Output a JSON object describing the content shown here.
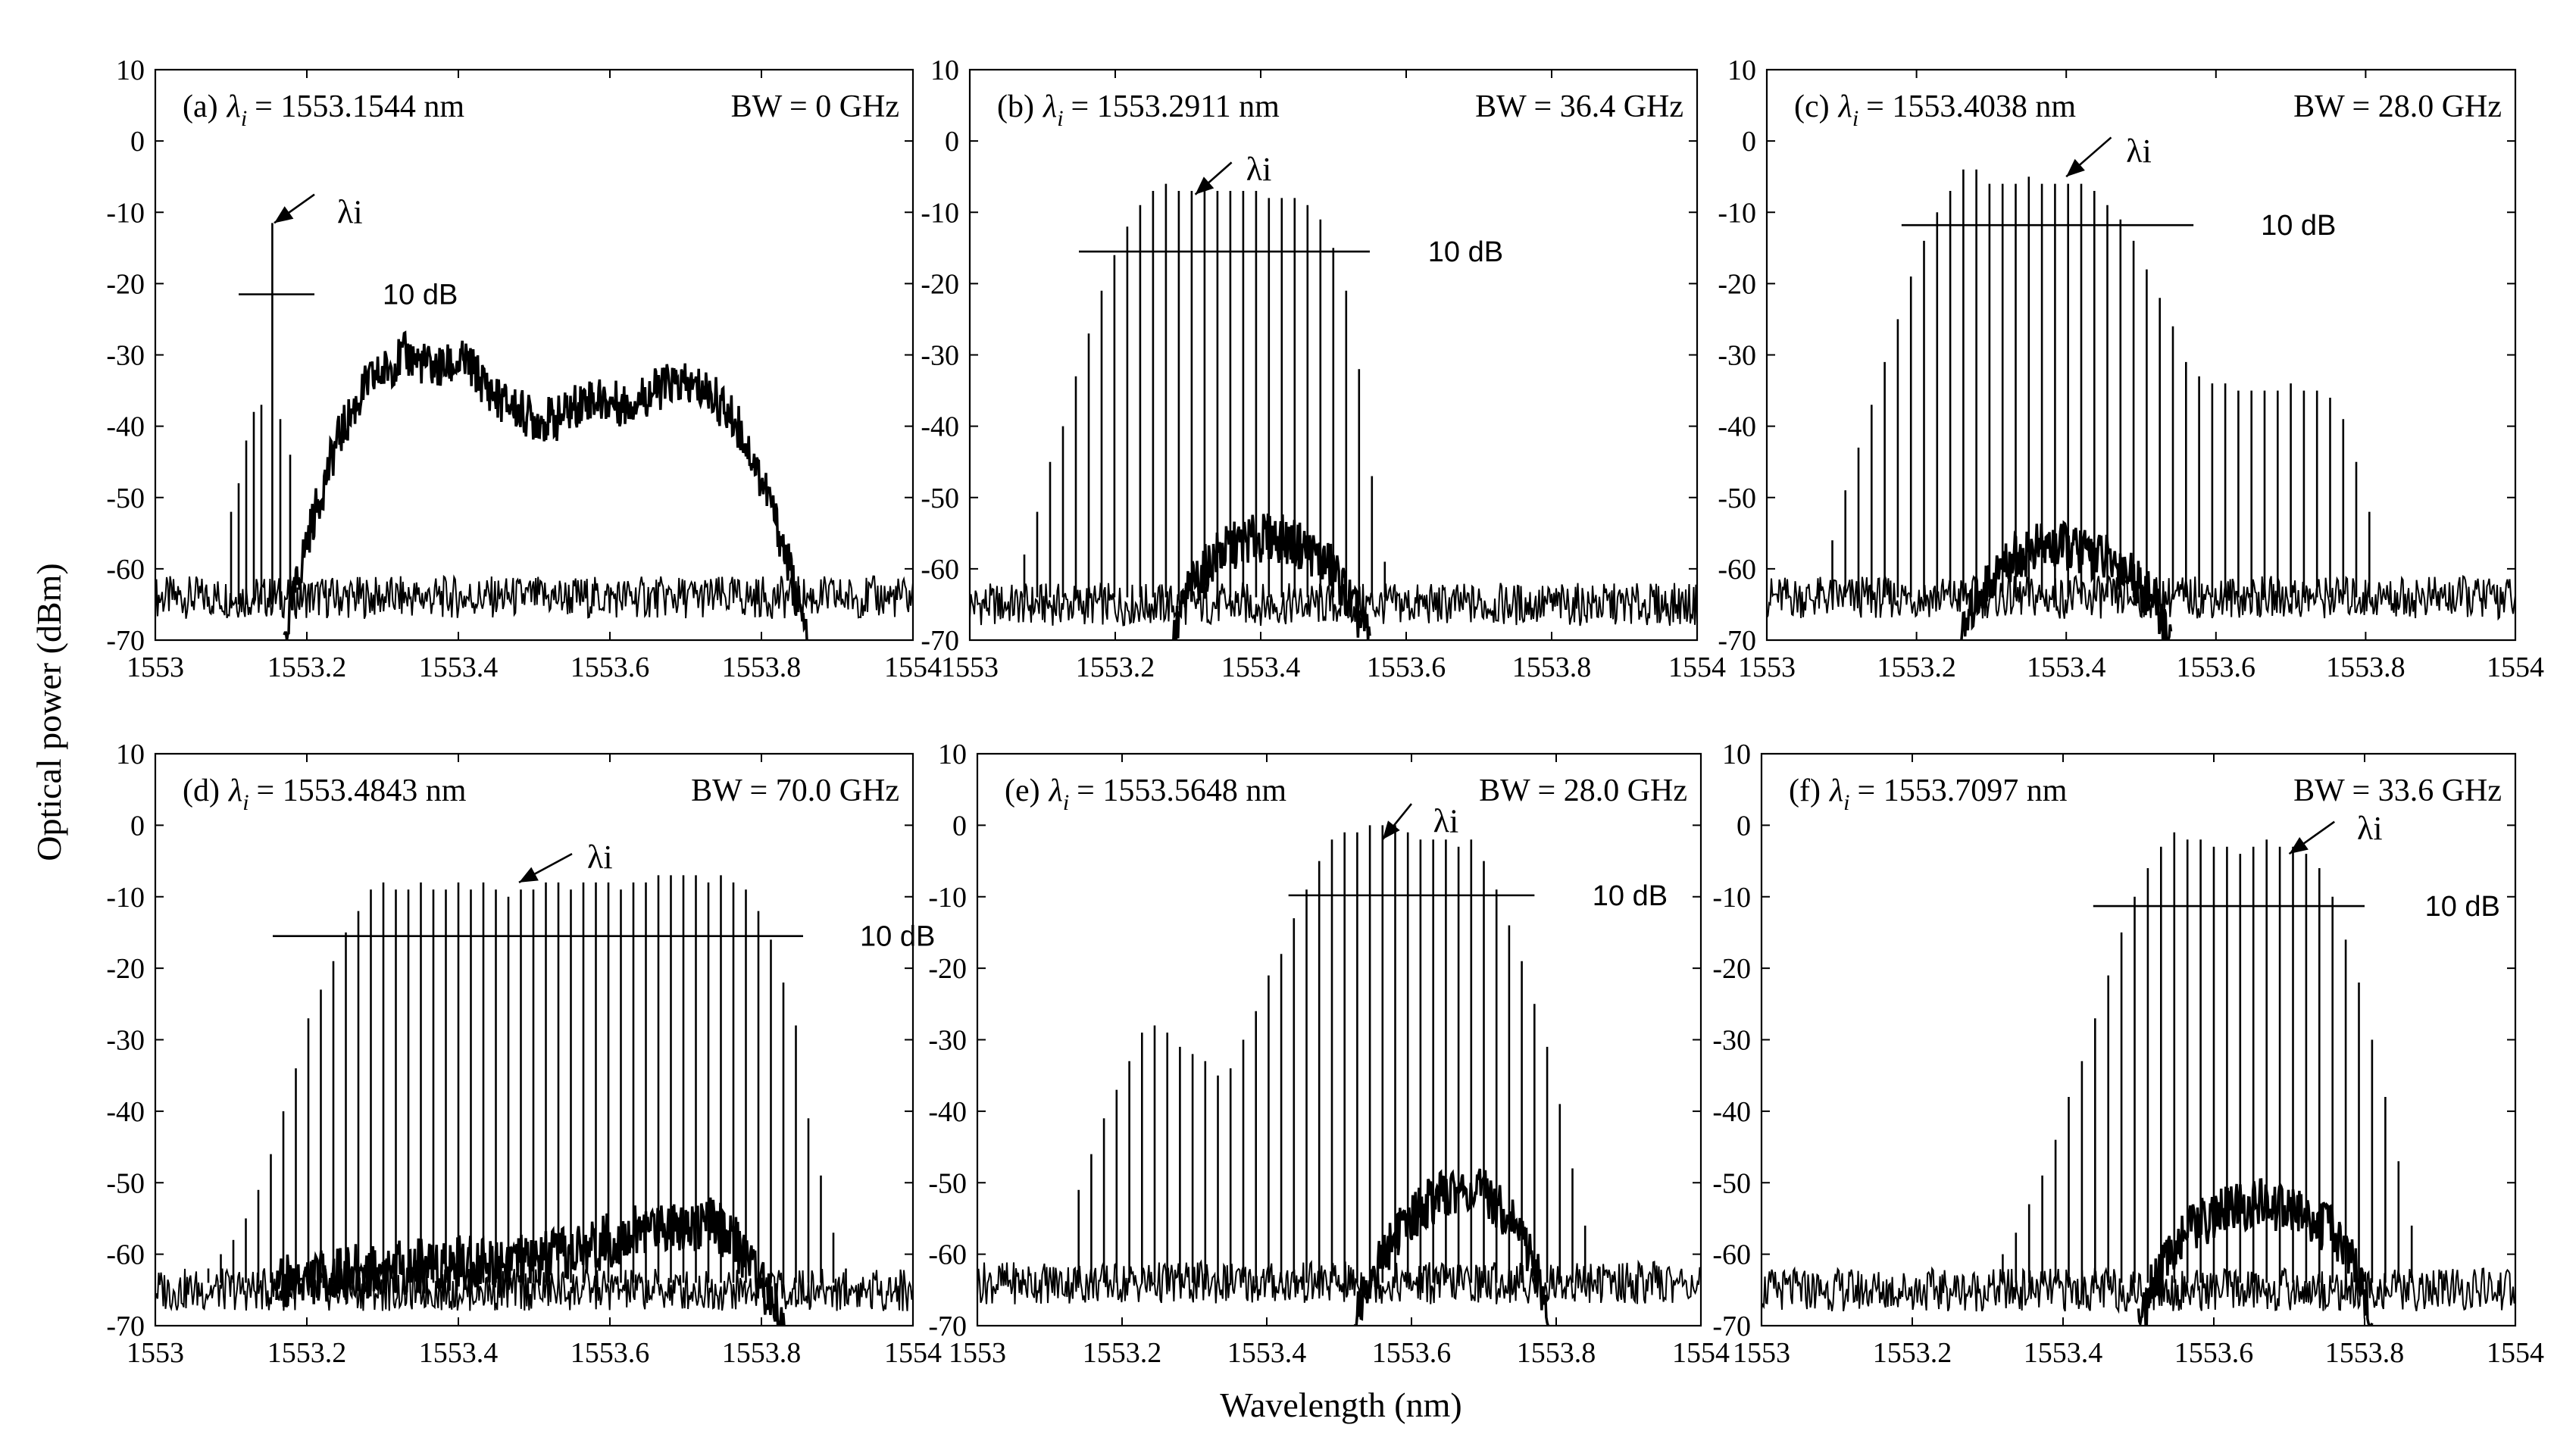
{
  "figure": {
    "y_axis_title": "Optical power (dBm)",
    "x_axis_title": "Wavelength (nm)"
  },
  "chart_data": [
    {
      "type": "line",
      "panel": "(a)",
      "lambda_text": "= 1553.1544 nm",
      "lambda_i_nm": 1553.1544,
      "bw_text": "BW = 0 GHz",
      "bw_ghz": 0,
      "db_label": "10 dB",
      "arrow_label": "λi",
      "xlim": [
        1553,
        1554
      ],
      "ylim": [
        -70,
        10
      ],
      "xticks": [
        "1553",
        "1553.2",
        "1553.4",
        "1553.6",
        "1553.8",
        "1554"
      ],
      "yticks": [
        "10",
        "0",
        "-10",
        "-20",
        "-30",
        "-40",
        "-50",
        "-60",
        "-70"
      ],
      "level_line": {
        "x1": 1553.11,
        "x2": 1553.21,
        "y": -21.5
      },
      "arrow": {
        "from": [
          1553.21,
          -7.5
        ],
        "to": [
          1553.157,
          -11.5
        ],
        "label_at": [
          1553.24,
          -10
        ]
      },
      "db_label_at": [
        1553.3,
        -21.5
      ],
      "comb": {
        "x": [
          1553.1,
          1553.11,
          1553.12,
          1553.13,
          1553.14,
          1553.1544,
          1553.165,
          1553.178
        ],
        "y": [
          -52,
          -48,
          -42,
          -38,
          -37,
          -11.5,
          -39,
          -44
        ],
        "floor": -65
      },
      "ase": {
        "points": [
          [
            1553.17,
            -70
          ],
          [
            1553.2,
            -56
          ],
          [
            1553.24,
            -42
          ],
          [
            1553.28,
            -34
          ],
          [
            1553.33,
            -30
          ],
          [
            1553.37,
            -32
          ],
          [
            1553.41,
            -31
          ],
          [
            1553.45,
            -36
          ],
          [
            1553.5,
            -39
          ],
          [
            1553.53,
            -39
          ],
          [
            1553.57,
            -36
          ],
          [
            1553.62,
            -37
          ],
          [
            1553.68,
            -34
          ],
          [
            1553.73,
            -35
          ],
          [
            1553.77,
            -40
          ],
          [
            1553.81,
            -50
          ],
          [
            1553.84,
            -61
          ],
          [
            1553.86,
            -70
          ]
        ],
        "amp": 3.2
      },
      "noise": {
        "base": -64,
        "amp": 3
      }
    },
    {
      "type": "line",
      "panel": "(b)",
      "lambda_text": "= 1553.2911 nm",
      "lambda_i_nm": 1553.2911,
      "bw_text": "BW = 36.4 GHz",
      "bw_ghz": 36.4,
      "db_label": "10 dB",
      "arrow_label": "λi",
      "xlim": [
        1553,
        1554
      ],
      "ylim": [
        -70,
        10
      ],
      "xticks": [
        "1553",
        "1553.2",
        "1553.4",
        "1553.6",
        "1553.8",
        "1554"
      ],
      "yticks": [
        "10",
        "0",
        "-10",
        "-20",
        "-30",
        "-40",
        "-50",
        "-60",
        "-70"
      ],
      "level_line": {
        "x1": 1553.15,
        "x2": 1553.55,
        "y": -15.5
      },
      "arrow": {
        "from": [
          1553.36,
          -3
        ],
        "to": [
          1553.31,
          -7.5
        ],
        "label_at": [
          1553.38,
          -4
        ]
      },
      "db_label_at": [
        1553.63,
        -15.5
      ],
      "comb": {
        "x": [
          1553.075,
          1553.0927,
          1553.1104,
          1553.1281,
          1553.1458,
          1553.1635,
          1553.1812,
          1553.1989,
          1553.2166,
          1553.2343,
          1553.252,
          1553.2697,
          1553.2874,
          1553.3051,
          1553.3228,
          1553.3405,
          1553.3582,
          1553.3759,
          1553.3936,
          1553.4113,
          1553.429,
          1553.4467,
          1553.4644,
          1553.4821,
          1553.4998,
          1553.5175,
          1553.5352,
          1553.5529,
          1553.5706
        ],
        "y": [
          -58,
          -52,
          -45,
          -40,
          -33,
          -27,
          -21,
          -16,
          -12,
          -9,
          -7,
          -6,
          -7,
          -7,
          -7,
          -7,
          -7,
          -7,
          -7,
          -8,
          -8,
          -8,
          -9,
          -11,
          -15,
          -21,
          -32,
          -47,
          -59
        ],
        "floor": -64
      },
      "ase": {
        "points": [
          [
            1553.28,
            -70
          ],
          [
            1553.3,
            -63
          ],
          [
            1553.34,
            -58
          ],
          [
            1553.38,
            -56
          ],
          [
            1553.42,
            -55.5
          ],
          [
            1553.46,
            -57
          ],
          [
            1553.5,
            -60
          ],
          [
            1553.53,
            -66
          ],
          [
            1553.55,
            -70
          ]
        ],
        "amp": 3.5
      },
      "noise": {
        "base": -65,
        "amp": 3
      }
    },
    {
      "type": "line",
      "panel": "(c)",
      "lambda_text": "= 1553.4038 nm",
      "lambda_i_nm": 1553.4038,
      "bw_text": "BW = 28.0 GHz",
      "bw_ghz": 28.0,
      "db_label": "10 dB",
      "arrow_label": "λi",
      "xlim": [
        1553,
        1554
      ],
      "ylim": [
        -70,
        10
      ],
      "xticks": [
        "1553",
        "1553.2",
        "1553.4",
        "1553.6",
        "1553.8",
        "1554"
      ],
      "yticks": [
        "10",
        "0",
        "-10",
        "-20",
        "-30",
        "-40",
        "-50",
        "-60",
        "-70"
      ],
      "level_line": {
        "x1": 1553.18,
        "x2": 1553.57,
        "y": -11.8
      },
      "arrow": {
        "from": [
          1553.46,
          0.5
        ],
        "to": [
          1553.4,
          -5
        ],
        "label_at": [
          1553.48,
          -1.5
        ]
      },
      "db_label_at": [
        1553.66,
        -11.8
      ],
      "comb": {
        "x": [
          1553.07,
          1553.0875,
          1553.105,
          1553.1225,
          1553.14,
          1553.1575,
          1553.175,
          1553.1925,
          1553.21,
          1553.2275,
          1553.245,
          1553.2625,
          1553.28,
          1553.2975,
          1553.315,
          1553.3325,
          1553.35,
          1553.3675,
          1553.385,
          1553.4025,
          1553.42,
          1553.4375,
          1553.455,
          1553.4725,
          1553.49,
          1553.5075,
          1553.525,
          1553.5425,
          1553.56,
          1553.5775,
          1553.595,
          1553.6125,
          1553.63,
          1553.6475,
          1553.665,
          1553.6825,
          1553.7,
          1553.7175,
          1553.735,
          1553.7525,
          1553.77,
          1553.7875,
          1553.805
        ],
        "y": [
          -62,
          -56,
          -49,
          -43,
          -37,
          -31,
          -25,
          -19,
          -14,
          -10,
          -7,
          -4,
          -4,
          -6,
          -6,
          -6,
          -5,
          -6,
          -6,
          -6,
          -6,
          -7,
          -9,
          -11,
          -14,
          -18,
          -22,
          -26,
          -31,
          -33,
          -34,
          -34,
          -35,
          -35,
          -35,
          -35,
          -34,
          -35,
          -35,
          -36,
          -39,
          -45,
          -52
        ],
        "floor": -64
      },
      "ase": {
        "points": [
          [
            1553.26,
            -70
          ],
          [
            1553.28,
            -64
          ],
          [
            1553.32,
            -59
          ],
          [
            1553.36,
            -57
          ],
          [
            1553.4,
            -57
          ],
          [
            1553.44,
            -58
          ],
          [
            1553.48,
            -60
          ],
          [
            1553.52,
            -65
          ],
          [
            1553.54,
            -70
          ]
        ],
        "amp": 3.5
      },
      "noise": {
        "base": -64,
        "amp": 3
      }
    },
    {
      "type": "line",
      "panel": "(d)",
      "lambda_text": "= 1553.4843 nm",
      "lambda_i_nm": 1553.4843,
      "bw_text": "BW = 70.0 GHz",
      "bw_ghz": 70.0,
      "db_label": "10 dB",
      "arrow_label": "λi",
      "xlim": [
        1553,
        1554
      ],
      "ylim": [
        -70,
        10
      ],
      "xticks": [
        "1553",
        "1553.2",
        "1553.4",
        "1553.6",
        "1553.8",
        "1554"
      ],
      "yticks": [
        "10",
        "0",
        "-10",
        "-20",
        "-30",
        "-40",
        "-50",
        "-60",
        "-70"
      ],
      "level_line": {
        "x1": 1553.155,
        "x2": 1553.855,
        "y": -15.5
      },
      "arrow": {
        "from": [
          1553.55,
          -4
        ],
        "to": [
          1553.48,
          -8
        ],
        "label_at": [
          1553.57,
          -4.5
        ]
      },
      "db_label_at": [
        1553.93,
        -15.5
      ],
      "comb": {
        "x": [
          1553.07,
          1553.0865,
          1553.103,
          1553.1195,
          1553.136,
          1553.1525,
          1553.169,
          1553.1855,
          1553.202,
          1553.2185,
          1553.235,
          1553.2515,
          1553.268,
          1553.2845,
          1553.301,
          1553.3175,
          1553.334,
          1553.3505,
          1553.367,
          1553.3835,
          1553.4,
          1553.4165,
          1553.433,
          1553.4495,
          1553.466,
          1553.4825,
          1553.499,
          1553.5155,
          1553.532,
          1553.5485,
          1553.565,
          1553.5815,
          1553.598,
          1553.6145,
          1553.631,
          1553.6475,
          1553.664,
          1553.6805,
          1553.697,
          1553.7135,
          1553.73,
          1553.7465,
          1553.763,
          1553.7795,
          1553.796,
          1553.8125,
          1553.829,
          1553.8455,
          1553.862,
          1553.8785,
          1553.895,
          1553.9115
        ],
        "y": [
          -62,
          -60,
          -58,
          -55,
          -51,
          -46,
          -40,
          -34,
          -27,
          -23,
          -19,
          -15,
          -12,
          -9,
          -8,
          -9,
          -9,
          -8,
          -9,
          -9,
          -8,
          -9,
          -8,
          -9,
          -10,
          -9,
          -9,
          -8,
          -8,
          -9,
          -8,
          -8,
          -8,
          -9,
          -8,
          -8,
          -7,
          -7,
          -7,
          -7,
          -8,
          -7,
          -8,
          -9,
          -12,
          -16,
          -22,
          -28,
          -41,
          -49,
          -57,
          -62
        ],
        "floor": -64
      },
      "ase": {
        "points": [
          [
            1553.16,
            -64
          ],
          [
            1553.3,
            -62
          ],
          [
            1553.42,
            -61
          ],
          [
            1553.5,
            -61
          ],
          [
            1553.55,
            -60
          ],
          [
            1553.6,
            -58
          ],
          [
            1553.66,
            -56
          ],
          [
            1553.7,
            -55.5
          ],
          [
            1553.74,
            -56
          ],
          [
            1553.78,
            -60
          ],
          [
            1553.81,
            -66
          ],
          [
            1553.83,
            -70
          ]
        ],
        "amp": 4
      },
      "noise": {
        "base": -65,
        "amp": 3
      }
    },
    {
      "type": "line",
      "panel": "(e)",
      "lambda_text": "= 1553.5648 nm",
      "lambda_i_nm": 1553.5648,
      "bw_text": "BW = 28.0 GHz",
      "bw_ghz": 28.0,
      "db_label": "10 dB",
      "arrow_label": "λi",
      "xlim": [
        1553,
        1554
      ],
      "ylim": [
        -70,
        10
      ],
      "xticks": [
        "1553",
        "1553.2",
        "1553.4",
        "1553.6",
        "1553.8",
        "1554"
      ],
      "yticks": [
        "10",
        "0",
        "-10",
        "-20",
        "-30",
        "-40",
        "-50",
        "-60",
        "-70"
      ],
      "level_line": {
        "x1": 1553.43,
        "x2": 1553.77,
        "y": -9.8
      },
      "arrow": {
        "from": [
          1553.6,
          3
        ],
        "to": [
          1553.56,
          -2
        ],
        "label_at": [
          1553.63,
          0.5
        ]
      },
      "db_label_at": [
        1553.85,
        -9.8
      ],
      "comb": {
        "x": [
          1553.14,
          1553.1575,
          1553.175,
          1553.1925,
          1553.21,
          1553.2275,
          1553.245,
          1553.2625,
          1553.28,
          1553.2975,
          1553.315,
          1553.3325,
          1553.35,
          1553.3675,
          1553.385,
          1553.4025,
          1553.42,
          1553.4375,
          1553.455,
          1553.4725,
          1553.49,
          1553.5075,
          1553.525,
          1553.5425,
          1553.56,
          1553.5775,
          1553.595,
          1553.6125,
          1553.63,
          1553.6475,
          1553.665,
          1553.6825,
          1553.7,
          1553.7175,
          1553.735,
          1553.7525,
          1553.77,
          1553.7875,
          1553.805,
          1553.8225,
          1553.84,
          1553.8575
        ],
        "y": [
          -51,
          -46,
          -41,
          -37,
          -33,
          -29,
          -28,
          -29,
          -31,
          -32,
          -33,
          -35,
          -34,
          -30,
          -26,
          -21,
          -18,
          -13,
          -9,
          -5,
          -2,
          -1,
          -1,
          0,
          0,
          0,
          -1,
          -2,
          -2,
          -2,
          -3,
          -2,
          -5,
          -9,
          -14,
          -19,
          -25,
          -31,
          -39,
          -48,
          -56,
          -62
        ],
        "floor": -64
      },
      "ase": {
        "points": [
          [
            1553.52,
            -70
          ],
          [
            1553.54,
            -64
          ],
          [
            1553.58,
            -57
          ],
          [
            1553.62,
            -53
          ],
          [
            1553.66,
            -51
          ],
          [
            1553.7,
            -51.5
          ],
          [
            1553.74,
            -55
          ],
          [
            1553.77,
            -61
          ],
          [
            1553.79,
            -70
          ]
        ],
        "amp": 3.5
      },
      "noise": {
        "base": -64,
        "amp": 3
      }
    },
    {
      "type": "line",
      "panel": "(f)",
      "lambda_text": "= 1553.7097 nm",
      "lambda_i_nm": 1553.7097,
      "bw_text": "BW = 33.6 GHz",
      "bw_ghz": 33.6,
      "db_label": "10 dB",
      "arrow_label": "λi",
      "xlim": [
        1553,
        1554
      ],
      "ylim": [
        -70,
        10
      ],
      "xticks": [
        "1553",
        "1553.2",
        "1553.4",
        "1553.6",
        "1553.8",
        "1554"
      ],
      "yticks": [
        "10",
        "0",
        "-10",
        "-20",
        "-30",
        "-40",
        "-50",
        "-60",
        "-70"
      ],
      "level_line": {
        "x1": 1553.44,
        "x2": 1553.8,
        "y": -11.3
      },
      "arrow": {
        "from": [
          1553.76,
          0.5
        ],
        "to": [
          1553.7,
          -4
        ],
        "label_at": [
          1553.79,
          -0.5
        ]
      },
      "db_label_at": [
        1553.88,
        -11.3
      ],
      "comb": {
        "x": [
          1553.32,
          1553.3375,
          1553.355,
          1553.3725,
          1553.39,
          1553.4075,
          1553.425,
          1553.4425,
          1553.46,
          1553.4775,
          1553.495,
          1553.5125,
          1553.53,
          1553.5475,
          1553.565,
          1553.5825,
          1553.6,
          1553.6175,
          1553.635,
          1553.6525,
          1553.67,
          1553.6875,
          1553.705,
          1553.7225,
          1553.74,
          1553.7575,
          1553.775,
          1553.7925,
          1553.81,
          1553.8275,
          1553.845,
          1553.8625
        ],
        "y": [
          -60,
          -57,
          -53,
          -49,
          -44,
          -38,
          -33,
          -27,
          -21,
          -15,
          -10,
          -6,
          -3,
          -1,
          -2,
          -2,
          -3,
          -3,
          -4,
          -3,
          -2,
          -3,
          -3,
          -4,
          -6,
          -10,
          -16,
          -22,
          -30,
          -38,
          -47,
          -56
        ],
        "floor": -64
      },
      "ase": {
        "points": [
          [
            1553.5,
            -70
          ],
          [
            1553.52,
            -64
          ],
          [
            1553.56,
            -57
          ],
          [
            1553.61,
            -54
          ],
          [
            1553.66,
            -53
          ],
          [
            1553.71,
            -54
          ],
          [
            1553.76,
            -57
          ],
          [
            1553.79,
            -62
          ],
          [
            1553.81,
            -70
          ]
        ],
        "amp": 3.5
      },
      "noise": {
        "base": -65,
        "amp": 3
      }
    }
  ]
}
